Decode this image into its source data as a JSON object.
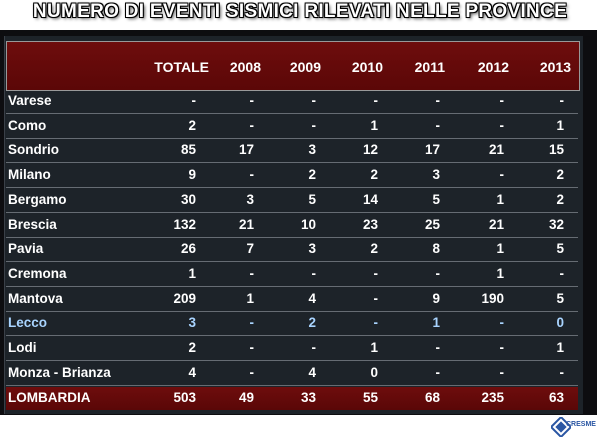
{
  "title": "NUMERO DI EVENTI SISMICI RILEVATI NELLE PROVINCE",
  "columns": [
    "TOTALE",
    "2008",
    "2009",
    "2010",
    "2011",
    "2012",
    "2013"
  ],
  "rows": [
    {
      "name": "Varese",
      "values": [
        "-",
        "-",
        "-",
        "-",
        "-",
        "-",
        "-"
      ]
    },
    {
      "name": "Como",
      "values": [
        "2",
        "-",
        "-",
        "1",
        "-",
        "-",
        "1"
      ]
    },
    {
      "name": "Sondrio",
      "values": [
        "85",
        "17",
        "3",
        "12",
        "17",
        "21",
        "15"
      ]
    },
    {
      "name": "Milano",
      "values": [
        "9",
        "-",
        "2",
        "2",
        "3",
        "-",
        "2"
      ]
    },
    {
      "name": "Bergamo",
      "values": [
        "30",
        "3",
        "5",
        "14",
        "5",
        "1",
        "2"
      ]
    },
    {
      "name": "Brescia",
      "values": [
        "132",
        "21",
        "10",
        "23",
        "25",
        "21",
        "32"
      ]
    },
    {
      "name": "Pavia",
      "values": [
        "26",
        "7",
        "3",
        "2",
        "8",
        "1",
        "5"
      ]
    },
    {
      "name": "Cremona",
      "values": [
        "1",
        "-",
        "-",
        "-",
        "-",
        "1",
        "-"
      ]
    },
    {
      "name": "Mantova",
      "values": [
        "209",
        "1",
        "4",
        "-",
        "9",
        "190",
        "5"
      ]
    },
    {
      "name": "Lecco",
      "values": [
        "3",
        "-",
        "2",
        "-",
        "1",
        "-",
        "0"
      ]
    },
    {
      "name": "Lodi",
      "values": [
        "2",
        "-",
        "-",
        "1",
        "-",
        "-",
        "1"
      ]
    },
    {
      "name": "Monza - Brianza",
      "values": [
        "4",
        "-",
        "4",
        "0",
        "-",
        "-",
        "-"
      ]
    }
  ],
  "total": {
    "name": "LOMBARDIA",
    "values": [
      "503",
      "49",
      "33",
      "55",
      "68",
      "235",
      "63"
    ]
  },
  "logo_text": "CRESME",
  "colors": {
    "header": "#6e0d0d",
    "panel": "#1d2329",
    "highlight_row": "#a9d4ff",
    "logo": "#2a56a3"
  }
}
